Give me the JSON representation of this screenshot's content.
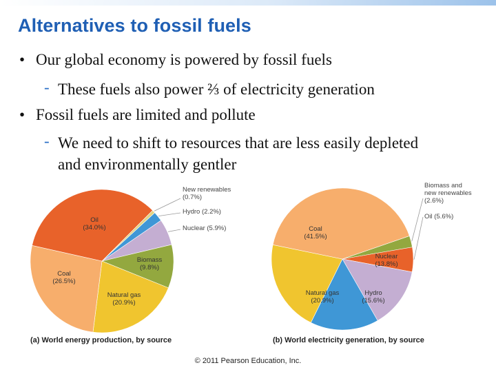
{
  "slide": {
    "title": "Alternatives to fossil fuels",
    "bullets": [
      {
        "text": "Our global economy is powered by fossil fuels",
        "sub": [
          "These fuels also power ⅔ of electricity generation"
        ]
      },
      {
        "text": "Fossil fuels are limited and pollute",
        "sub": [
          "We need to shift to resources that are less easily depleted and environmentally gentler"
        ]
      }
    ],
    "bullet_glyph": "•",
    "sub_glyph": "-",
    "footer": "© 2011 Pearson Education, Inc."
  },
  "chart_data": [
    {
      "type": "pie",
      "title": "(a) World energy production, by source",
      "slices": [
        {
          "label": "New renewables",
          "value": 0.7,
          "value_label": "(0.7%)",
          "color": "#e3d281"
        },
        {
          "label": "Hydro (2.2%)",
          "value": 2.2,
          "value_label": "",
          "color": "#3f97d6"
        },
        {
          "label": "Nuclear (5.9%)",
          "value": 5.9,
          "value_label": "",
          "color": "#c4aed2"
        },
        {
          "label": "Biomass",
          "value": 9.8,
          "value_label": "(9.8%)",
          "color": "#93a83f"
        },
        {
          "label": "Natural gas",
          "value": 20.9,
          "value_label": "(20.9%)",
          "color": "#f0c52f"
        },
        {
          "label": "Coal",
          "value": 26.5,
          "value_label": "(26.5%)",
          "color": "#f7ae6c"
        },
        {
          "label": "Oil",
          "value": 34.0,
          "value_label": "(34.0%)",
          "color": "#e8622a"
        }
      ]
    },
    {
      "type": "pie",
      "title": "(b) World electricity generation, by source",
      "slices": [
        {
          "label": "Biomass and new renewables",
          "value": 2.6,
          "value_label": "(2.6%)",
          "color": "#93a83f"
        },
        {
          "label": "Oil (5.6%)",
          "value": 5.6,
          "value_label": "",
          "color": "#e8622a"
        },
        {
          "label": "Nuclear",
          "value": 13.8,
          "value_label": "(13.8%)",
          "color": "#c4aed2"
        },
        {
          "label": "Hydro",
          "value": 15.6,
          "value_label": "(15.6%)",
          "color": "#3f97d6"
        },
        {
          "label": "Natural gas",
          "value": 20.9,
          "value_label": "(20.9%)",
          "color": "#f0c52f"
        },
        {
          "label": "Coal",
          "value": 41.5,
          "value_label": "(41.5%)",
          "color": "#f7ae6c"
        }
      ]
    }
  ]
}
